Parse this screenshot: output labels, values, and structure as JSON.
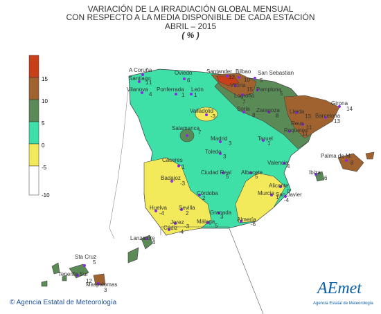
{
  "title": {
    "line1": "VARIACIÓN  DE LA IRRADIACIÓN GLOBAL MENSUAL",
    "line2": "CON RESPECTO A LA MEDIA DISPONIBLE DE CADA ESTACIÓN",
    "line3": "ABRIL – 2015",
    "unit": "( % )"
  },
  "legend": [
    {
      "color": "#c8401a",
      "label": "15"
    },
    {
      "color": "#a0622e",
      "label": "10"
    },
    {
      "color": "#5a8a56",
      "label": "5"
    },
    {
      "color": "#3ee0a8",
      "label": "0"
    },
    {
      "color": "#f2ea5a",
      "label": "-5"
    },
    {
      "color": "#ffffff",
      "label": "-10"
    }
  ],
  "stations": [
    {
      "name": "A Coruña",
      "value": "1"
    },
    {
      "name": "Santiago",
      "value": "1"
    },
    {
      "name": "Vilanova",
      "value": "4"
    },
    {
      "name": "Oviedo",
      "value": "6"
    },
    {
      "name": "Ponferrada",
      "value": "1"
    },
    {
      "name": "León",
      "value": "1"
    },
    {
      "name": "Santander",
      "value": "12"
    },
    {
      "name": "Bilbao",
      "value": "10"
    },
    {
      "name": "San Sebastian",
      "value": "5"
    },
    {
      "name": "Vitoria",
      "value": "15"
    },
    {
      "name": "Pamplona",
      "value": "5"
    },
    {
      "name": "Logroño",
      "value": "7"
    },
    {
      "name": "Valladolid",
      "value": "-3"
    },
    {
      "name": "Soria",
      "value": "8"
    },
    {
      "name": "Zaragoza",
      "value": "8"
    },
    {
      "name": "Lleida",
      "value": "13"
    },
    {
      "name": "Girona",
      "value": "14"
    },
    {
      "name": "Barcelona",
      "value": "13"
    },
    {
      "name": "Reus",
      "value": "11"
    },
    {
      "name": "Roquetes",
      "value": "11"
    },
    {
      "name": "Salamanca",
      "value": "7"
    },
    {
      "name": "Madrid",
      "value": "3"
    },
    {
      "name": "Teruel",
      "value": "1"
    },
    {
      "name": "Toledo",
      "value": "3"
    },
    {
      "name": "Palma de M.",
      "value": "8"
    },
    {
      "name": "Cáceres",
      "value": "1"
    },
    {
      "name": "Ciudad Real",
      "value": "5"
    },
    {
      "name": "Albacete",
      "value": "5"
    },
    {
      "name": "Valencia",
      "value": "4"
    },
    {
      "name": "Ibiza",
      "value": "6"
    },
    {
      "name": "Badajoz",
      "value": "-3"
    },
    {
      "name": "Alicante",
      "value": "0"
    },
    {
      "name": "Córdoba",
      "value": "2"
    },
    {
      "name": "Murcia",
      "value": "1"
    },
    {
      "name": "San Javier",
      "value": "-4"
    },
    {
      "name": "Huelva",
      "value": "-4"
    },
    {
      "name": "Sevilla",
      "value": "2"
    },
    {
      "name": "Granada",
      "value": "3"
    },
    {
      "name": "Almería",
      "value": "-6"
    },
    {
      "name": "Jerez",
      "value": "-3"
    },
    {
      "name": "Cádiz",
      "value": "-4"
    },
    {
      "name": "Málaga",
      "value": "5"
    },
    {
      "name": "Lanzarote",
      "value": "6"
    },
    {
      "name": "Sta Cruz",
      "value": "5"
    },
    {
      "name": "Tenerife Sur",
      "value": "12"
    },
    {
      "name": "Maspalomas",
      "value": "3"
    }
  ],
  "footer": "© Agencia Estatal de Meteorología",
  "logo": {
    "name": "AEmet",
    "sub": "Agencia Estatal de Meteorología"
  }
}
